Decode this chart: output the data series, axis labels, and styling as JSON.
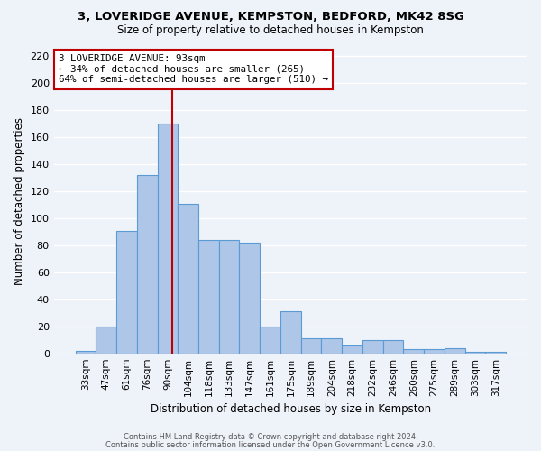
{
  "title_line1": "3, LOVERIDGE AVENUE, KEMPSTON, BEDFORD, MK42 8SG",
  "title_line2": "Size of property relative to detached houses in Kempston",
  "xlabel": "Distribution of detached houses by size in Kempston",
  "ylabel": "Number of detached properties",
  "bar_labels": [
    "33sqm",
    "47sqm",
    "61sqm",
    "76sqm",
    "90sqm",
    "104sqm",
    "118sqm",
    "133sqm",
    "147sqm",
    "161sqm",
    "175sqm",
    "189sqm",
    "204sqm",
    "218sqm",
    "232sqm",
    "246sqm",
    "260sqm",
    "275sqm",
    "289sqm",
    "303sqm",
    "317sqm"
  ],
  "bar_values": [
    2,
    20,
    91,
    132,
    170,
    111,
    84,
    84,
    82,
    20,
    31,
    11,
    11,
    6,
    10,
    10,
    3,
    3,
    4,
    1,
    1
  ],
  "bar_color": "#aec6e8",
  "bar_edge_color": "#5b9bd5",
  "vline_color": "#c00000",
  "annotation_title": "3 LOVERIDGE AVENUE: 93sqm",
  "annotation_line1": "← 34% of detached houses are smaller (265)",
  "annotation_line2": "64% of semi-detached houses are larger (510) →",
  "annotation_box_color": "#ffffff",
  "annotation_box_edge": "#c00000",
  "ylim": [
    0,
    225
  ],
  "yticks": [
    0,
    20,
    40,
    60,
    80,
    100,
    120,
    140,
    160,
    180,
    200,
    220
  ],
  "footer_line1": "Contains HM Land Registry data © Crown copyright and database right 2024.",
  "footer_line2": "Contains public sector information licensed under the Open Government Licence v3.0.",
  "bg_color": "#eef2f9",
  "grid_color": "#ffffff"
}
